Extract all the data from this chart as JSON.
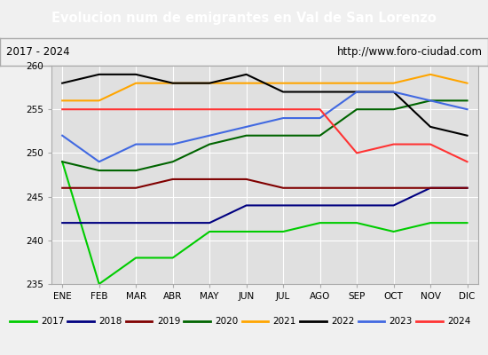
{
  "title": "Evolucion num de emigrantes en Val de San Lorenzo",
  "subtitle_left": "2017 - 2024",
  "subtitle_right": "http://www.foro-ciudad.com",
  "months": [
    "ENE",
    "FEB",
    "MAR",
    "ABR",
    "MAY",
    "JUN",
    "JUL",
    "AGO",
    "SEP",
    "OCT",
    "NOV",
    "DIC"
  ],
  "ylim": [
    235,
    260
  ],
  "yticks": [
    235,
    240,
    245,
    250,
    255,
    260
  ],
  "series": {
    "2017": {
      "color": "#00cc00",
      "values": [
        249,
        235,
        238,
        238,
        241,
        241,
        241,
        242,
        242,
        241,
        242,
        242
      ]
    },
    "2018": {
      "color": "#000080",
      "values": [
        242,
        242,
        242,
        242,
        242,
        244,
        244,
        244,
        244,
        244,
        246,
        246
      ]
    },
    "2019": {
      "color": "#800000",
      "values": [
        246,
        246,
        246,
        247,
        247,
        247,
        246,
        246,
        246,
        246,
        246,
        246
      ]
    },
    "2020": {
      "color": "#006400",
      "values": [
        249,
        248,
        248,
        249,
        251,
        252,
        252,
        252,
        255,
        255,
        256,
        256
      ]
    },
    "2021": {
      "color": "#ffa500",
      "values": [
        256,
        256,
        258,
        258,
        258,
        258,
        258,
        258,
        258,
        258,
        259,
        258
      ]
    },
    "2022": {
      "color": "#000000",
      "values": [
        258,
        259,
        259,
        258,
        258,
        259,
        257,
        257,
        257,
        257,
        253,
        252
      ]
    },
    "2023": {
      "color": "#4169e1",
      "values": [
        252,
        249,
        251,
        251,
        252,
        253,
        254,
        254,
        257,
        257,
        256,
        255
      ]
    },
    "2024": {
      "color": "#ff3333",
      "values": [
        255,
        255,
        255,
        255,
        255,
        255,
        255,
        255,
        250,
        251,
        251,
        249
      ]
    }
  },
  "series_order": [
    "2017",
    "2018",
    "2019",
    "2020",
    "2021",
    "2022",
    "2023",
    "2024"
  ],
  "background_color": "#f0f0f0",
  "plot_background": "#e0e0e0",
  "title_bg": "#5b9bd5",
  "title_color": "white",
  "grid_color": "white",
  "subtitle_border_color": "#aaaaaa"
}
